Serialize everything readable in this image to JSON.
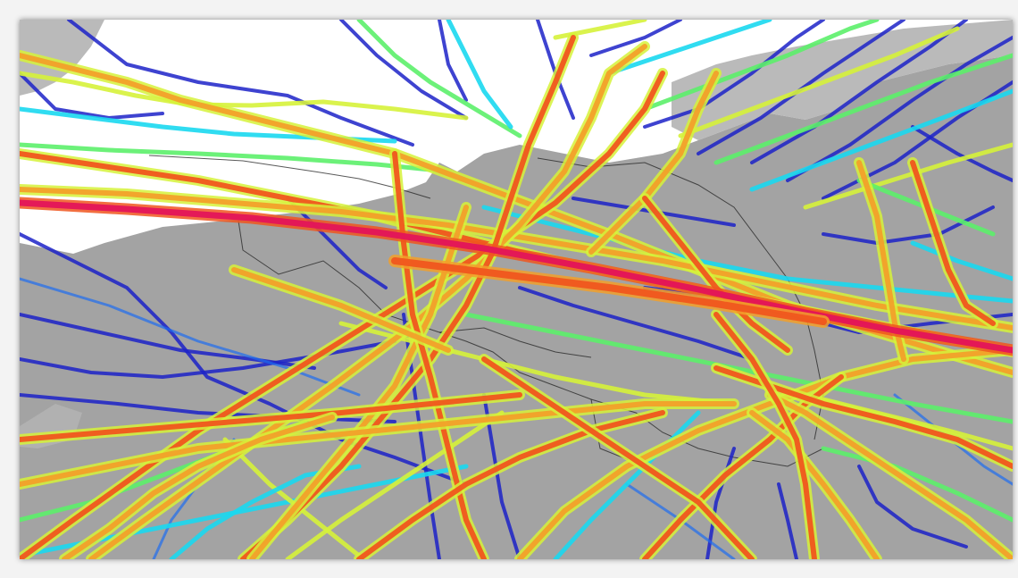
{
  "map": {
    "colors": {
      "sea": "#ffffff",
      "land": "#a3a3a3",
      "land_lighter": "#b2b2b2",
      "border": "#222222",
      "frame_shadow": "#000000"
    },
    "density_scale": [
      "#1c22c8",
      "#1e6cf0",
      "#19d8f0",
      "#5cf06a",
      "#d6f23a",
      "#f2a02a",
      "#f0561e",
      "#e3145a"
    ]
  }
}
